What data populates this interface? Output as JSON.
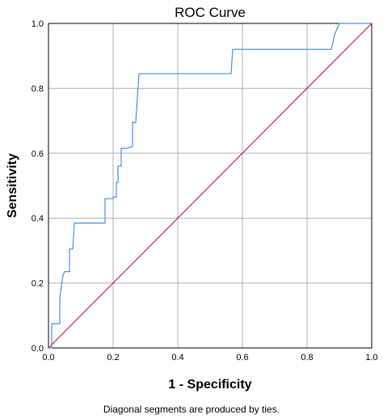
{
  "chart_data": {
    "type": "line",
    "title": "ROC Curve",
    "xlabel": "1 - Specificity",
    "ylabel": "Sensitivity",
    "xlim": [
      0,
      1
    ],
    "ylim": [
      0,
      1
    ],
    "x_ticks": [
      "0.0",
      "0.2",
      "0.4",
      "0.6",
      "0.8",
      "1.0"
    ],
    "y_ticks": [
      "0.0",
      "0.2",
      "0.4",
      "0.6",
      "0.8",
      "1.0"
    ],
    "grid": true,
    "footnote": "Diagonal segments are produced by ties.",
    "series": [
      {
        "color": "#4a90d9",
        "x": [
          0.0,
          0.01,
          0.01,
          0.035,
          0.035,
          0.045,
          0.05,
          0.065,
          0.065,
          0.075,
          0.08,
          0.175,
          0.175,
          0.2,
          0.2,
          0.21,
          0.21,
          0.215,
          0.215,
          0.225,
          0.225,
          0.24,
          0.24,
          0.26,
          0.26,
          0.27,
          0.28,
          0.565,
          0.57,
          0.875,
          0.885,
          0.9,
          1.0
        ],
        "y": [
          0.0,
          0.0,
          0.075,
          0.075,
          0.155,
          0.225,
          0.235,
          0.235,
          0.305,
          0.305,
          0.385,
          0.385,
          0.46,
          0.46,
          0.465,
          0.465,
          0.51,
          0.51,
          0.56,
          0.56,
          0.615,
          0.615,
          0.615,
          0.62,
          0.695,
          0.695,
          0.845,
          0.845,
          0.92,
          0.92,
          0.965,
          1.0,
          1.0
        ]
      },
      {
        "color": "#a8324a",
        "x": [
          0,
          1
        ],
        "y": [
          0,
          1
        ]
      }
    ]
  }
}
